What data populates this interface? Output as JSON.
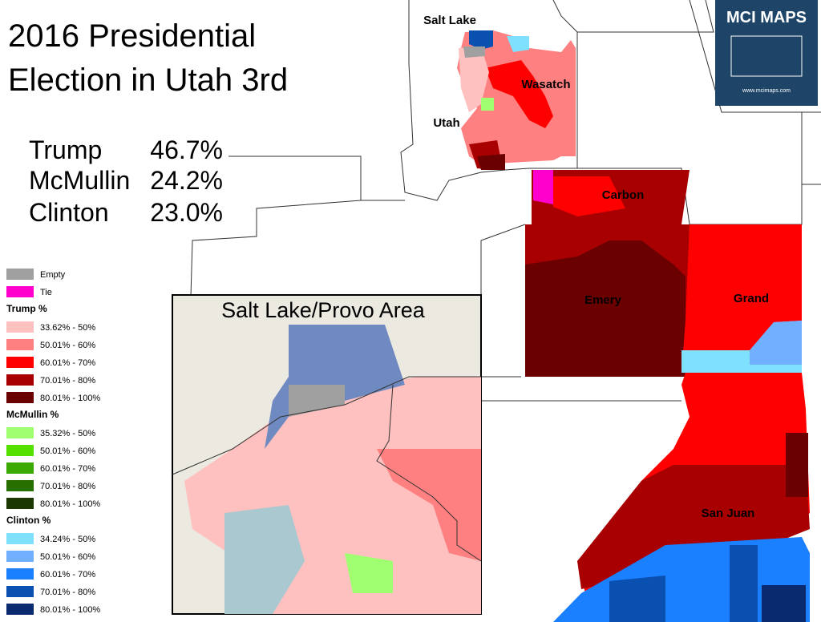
{
  "title": [
    "2016 Presidential",
    "Election in Utah 3rd"
  ],
  "results": [
    {
      "candidate": "Trump",
      "share": "46.7%"
    },
    {
      "candidate": "McMullin",
      "share": "24.2%"
    },
    {
      "candidate": "Clinton",
      "share": "23.0%"
    }
  ],
  "counties": [
    "Salt Lake",
    "Wasatch",
    "Utah",
    "Carbon",
    "Emery",
    "Grand",
    "San Juan"
  ],
  "inset_title": "Salt Lake/Provo Area",
  "logo": {
    "title": "MCI MAPS",
    "url": "www.mcimaps.com"
  },
  "legend": {
    "special": [
      {
        "label": "Empty",
        "color": "#a0a0a0"
      },
      {
        "label": "Tie",
        "color": "#ff00cc"
      }
    ],
    "groups": [
      {
        "title": "Trump %",
        "items": [
          {
            "label": "33.62% - 50%",
            "color": "#ffc0c0"
          },
          {
            "label": "50.01% - 60%",
            "color": "#ff8080"
          },
          {
            "label": "60.01% - 70%",
            "color": "#ff0000"
          },
          {
            "label": "70.01% - 80%",
            "color": "#a80000"
          },
          {
            "label": "80.01% - 100%",
            "color": "#6a0000"
          }
        ]
      },
      {
        "title": "McMullin %",
        "items": [
          {
            "label": "35.32% - 50%",
            "color": "#a0ff70"
          },
          {
            "label": "50.01% - 60%",
            "color": "#55e000"
          },
          {
            "label": "60.01% - 70%",
            "color": "#3aaa00"
          },
          {
            "label": "70.01% - 80%",
            "color": "#267000"
          },
          {
            "label": "80.01% - 100%",
            "color": "#1a3800"
          }
        ]
      },
      {
        "title": "Clinton %",
        "items": [
          {
            "label": "34.24% - 50%",
            "color": "#80e0ff"
          },
          {
            "label": "50.01% - 60%",
            "color": "#70b0ff"
          },
          {
            "label": "60.01% - 70%",
            "color": "#1a80ff"
          },
          {
            "label": "70.01% - 80%",
            "color": "#0a50b0"
          },
          {
            "label": "80.01% - 100%",
            "color": "#0a2a70"
          }
        ]
      }
    ]
  }
}
